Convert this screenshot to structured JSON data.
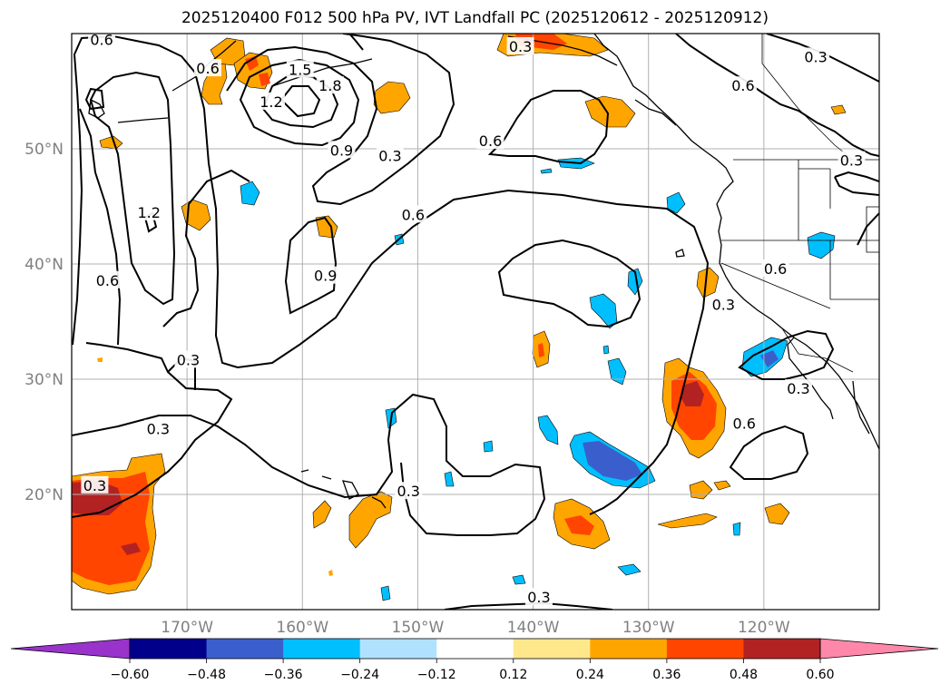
{
  "title": "2025120400 F012 500 hPa PV, IVT Landfall PC (2025120612 - 2025120912)",
  "map": {
    "lon_range": [
      -180,
      -110
    ],
    "lat_range": [
      10,
      60
    ],
    "lon_ticks": [
      {
        "value": -170,
        "label": "170°W"
      },
      {
        "value": -160,
        "label": "160°W"
      },
      {
        "value": -150,
        "label": "150°W"
      },
      {
        "value": -140,
        "label": "140°W"
      },
      {
        "value": -130,
        "label": "130°W"
      },
      {
        "value": -120,
        "label": "120°W"
      }
    ],
    "lat_ticks": [
      {
        "value": 20,
        "label": "20°N"
      },
      {
        "value": 30,
        "label": "30°N"
      },
      {
        "value": 40,
        "label": "40°N"
      },
      {
        "value": 50,
        "label": "50°N"
      }
    ],
    "grid": true,
    "contour_labels": [
      {
        "text": "0.3",
        "lon": -172.5,
        "lat": 25.7
      },
      {
        "text": "0.3",
        "lon": -178.0,
        "lat": 20.8
      },
      {
        "text": "0.3",
        "lon": -169.9,
        "lat": 31.7
      },
      {
        "text": "0.3",
        "lon": -150.8,
        "lat": 20.3
      },
      {
        "text": "0.3",
        "lon": -139.5,
        "lat": 11.1
      },
      {
        "text": "0.3",
        "lon": -152.4,
        "lat": 49.4
      },
      {
        "text": "0.3",
        "lon": -141.1,
        "lat": 58.9
      },
      {
        "text": "0.3",
        "lon": -123.5,
        "lat": 36.5
      },
      {
        "text": "0.3",
        "lon": -117.0,
        "lat": 29.2
      },
      {
        "text": "0.3",
        "lon": -115.5,
        "lat": 58.0
      },
      {
        "text": "0.3",
        "lon": -112.4,
        "lat": 49.0
      },
      {
        "text": "0.6",
        "lon": -177.4,
        "lat": 59.5
      },
      {
        "text": "0.6",
        "lon": -168.2,
        "lat": 57.0
      },
      {
        "text": "0.6",
        "lon": -176.9,
        "lat": 38.6
      },
      {
        "text": "0.6",
        "lon": -150.4,
        "lat": 44.3
      },
      {
        "text": "0.6",
        "lon": -143.7,
        "lat": 50.7
      },
      {
        "text": "0.6",
        "lon": -121.8,
        "lat": 55.5
      },
      {
        "text": "0.6",
        "lon": -119.0,
        "lat": 39.6
      },
      {
        "text": "0.6",
        "lon": -121.7,
        "lat": 26.2
      },
      {
        "text": "0.9",
        "lon": -156.6,
        "lat": 49.9
      },
      {
        "text": "0.9",
        "lon": -158.0,
        "lat": 39.0
      },
      {
        "text": "1.2",
        "lon": -162.7,
        "lat": 54.1
      },
      {
        "text": "1.2",
        "lon": -173.3,
        "lat": 44.5
      },
      {
        "text": "1.5",
        "lon": -160.2,
        "lat": 56.9
      },
      {
        "text": "1.8",
        "lon": -157.6,
        "lat": 55.5
      }
    ]
  },
  "colorbar": {
    "levels": [
      -0.6,
      -0.48,
      -0.36,
      -0.24,
      -0.12,
      0.12,
      0.24,
      0.36,
      0.48,
      0.6
    ],
    "labels": [
      "−0.60",
      "−0.48",
      "−0.36",
      "−0.24",
      "−0.12",
      "0.12",
      "0.24",
      "0.36",
      "0.48",
      "0.60"
    ],
    "colors": [
      "#9933cc",
      "#00008b",
      "#3a5fcd",
      "#00bfff",
      "#b0e2ff",
      "#ffffff",
      "#ffe88c",
      "#ffa500",
      "#ff4500",
      "#b22222",
      "#ff88aa"
    ],
    "extend": "both"
  }
}
